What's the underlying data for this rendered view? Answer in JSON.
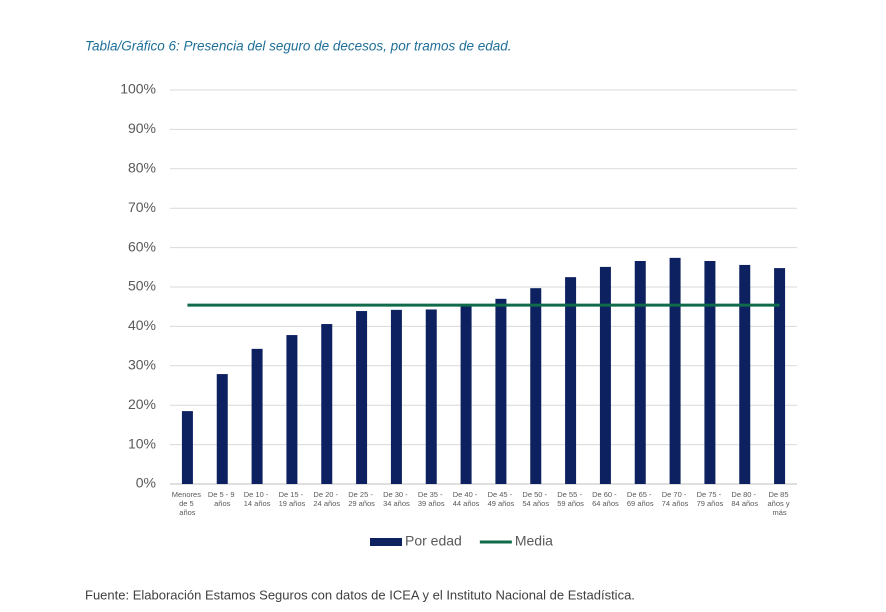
{
  "chart_data": {
    "type": "bar",
    "title": "Tabla/Gráfico 6: Presencia del seguro de decesos, por tramos de edad.",
    "source": "Fuente: Elaboración Estamos Seguros con datos de ICEA y el Instituto Nacional de Estadística.",
    "categories": [
      "Menores de 5 años",
      "De 5 - 9 años",
      "De 10 - 14 años",
      "De 15 - 19 años",
      "De 20 - 24 años",
      "De 25 - 29 años",
      "De 30 - 34 años",
      "De 35 - 39 años",
      "De 40 - 44 años",
      "De 45 - 49 años",
      "De 50 - 54 años",
      "De 55 - 59 años",
      "De 60 - 64 años",
      "De 65 - 69 años",
      "De 70 - 74 años",
      "De 75 - 79 años",
      "De 80 - 84 años",
      "De 85 años y más"
    ],
    "series": [
      {
        "name": "Por edad",
        "type": "bar",
        "color": "#0d2160",
        "values": [
          18.5,
          27.9,
          34.3,
          37.8,
          40.6,
          43.9,
          44.2,
          44.3,
          45.4,
          47.0,
          49.7,
          52.5,
          55.1,
          56.6,
          57.4,
          56.6,
          55.6,
          54.8
        ]
      },
      {
        "name": "Media",
        "type": "line",
        "color": "#0f6b4a",
        "values": [
          45.4,
          45.4,
          45.4,
          45.4,
          45.4,
          45.4,
          45.4,
          45.4,
          45.4,
          45.4,
          45.4,
          45.4,
          45.4,
          45.4,
          45.4,
          45.4,
          45.4,
          45.4
        ]
      }
    ],
    "ylim": [
      0,
      100
    ],
    "yticks": [
      {
        "value": 0,
        "label": "0%"
      },
      {
        "value": 10,
        "label": "10%"
      },
      {
        "value": 20,
        "label": "20%"
      },
      {
        "value": 30,
        "label": "30%"
      },
      {
        "value": 40,
        "label": "40%"
      },
      {
        "value": 50,
        "label": "50%"
      },
      {
        "value": 60,
        "label": "60%"
      },
      {
        "value": 70,
        "label": "70%"
      },
      {
        "value": 80,
        "label": "80%"
      },
      {
        "value": 90,
        "label": "90%"
      },
      {
        "value": 100,
        "label": "100%"
      }
    ],
    "grid": true,
    "legend": "bottom"
  }
}
